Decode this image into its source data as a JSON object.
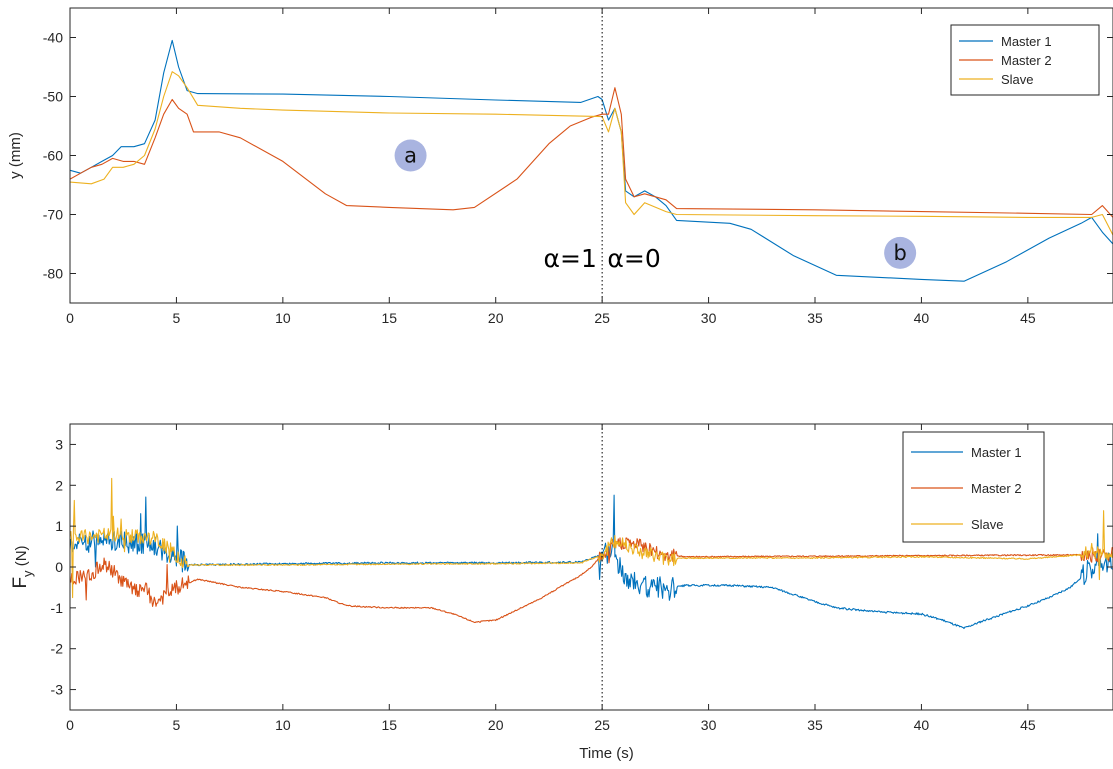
{
  "chart_data": [
    {
      "type": "line",
      "ylabel": "y (mm)",
      "xlabel": "",
      "xlim": [
        0,
        49
      ],
      "ylim": [
        -85,
        -35
      ],
      "x_ticks": [
        0,
        5,
        10,
        15,
        20,
        25,
        30,
        35,
        40,
        45
      ],
      "y_ticks": [
        -80,
        -70,
        -60,
        -50,
        -40
      ],
      "grid": false,
      "legend_position": "top-right",
      "legend": [
        "Master 1",
        "Master 2",
        "Slave"
      ],
      "series": [
        {
          "name": "Master 1",
          "color": "#0072BD",
          "points": [
            [
              0,
              -62.5
            ],
            [
              0.5,
              -63
            ],
            [
              1,
              -62
            ],
            [
              1.5,
              -61
            ],
            [
              2,
              -60
            ],
            [
              2.4,
              -58.5
            ],
            [
              3,
              -58.5
            ],
            [
              3.5,
              -58
            ],
            [
              4,
              -54
            ],
            [
              4.4,
              -46
            ],
            [
              4.8,
              -40.5
            ],
            [
              5.1,
              -45
            ],
            [
              5.5,
              -49
            ],
            [
              6,
              -49.5
            ],
            [
              10,
              -49.6
            ],
            [
              15,
              -50
            ],
            [
              20,
              -50.6
            ],
            [
              24,
              -51
            ],
            [
              24.8,
              -50
            ],
            [
              25,
              -50.5
            ],
            [
              25.3,
              -54
            ],
            [
              25.6,
              -52
            ],
            [
              25.9,
              -56
            ],
            [
              26.1,
              -66
            ],
            [
              26.5,
              -67
            ],
            [
              27,
              -66
            ],
            [
              27.5,
              -67
            ],
            [
              28,
              -68.5
            ],
            [
              28.5,
              -71
            ],
            [
              31,
              -71.5
            ],
            [
              32,
              -72.5
            ],
            [
              34,
              -77
            ],
            [
              36,
              -80.3
            ],
            [
              40,
              -81
            ],
            [
              42,
              -81.3
            ],
            [
              44,
              -78
            ],
            [
              46,
              -74
            ],
            [
              47.5,
              -71.5
            ],
            [
              48,
              -70.5
            ],
            [
              48.5,
              -73
            ],
            [
              49,
              -75
            ]
          ]
        },
        {
          "name": "Master 2",
          "color": "#D95319",
          "points": [
            [
              0,
              -64
            ],
            [
              0.5,
              -63
            ],
            [
              1,
              -62
            ],
            [
              1.5,
              -61.5
            ],
            [
              2,
              -60.5
            ],
            [
              2.5,
              -61
            ],
            [
              3,
              -61
            ],
            [
              3.5,
              -61.5
            ],
            [
              4,
              -57
            ],
            [
              4.4,
              -53
            ],
            [
              4.8,
              -50.5
            ],
            [
              5.1,
              -52
            ],
            [
              5.5,
              -53
            ],
            [
              5.8,
              -56
            ],
            [
              7,
              -56
            ],
            [
              8,
              -57
            ],
            [
              10,
              -61
            ],
            [
              12,
              -66.5
            ],
            [
              13,
              -68.5
            ],
            [
              15,
              -68.8
            ],
            [
              18,
              -69.2
            ],
            [
              19,
              -68.8
            ],
            [
              21,
              -64
            ],
            [
              22.5,
              -58
            ],
            [
              23.5,
              -55
            ],
            [
              24.5,
              -53.5
            ],
            [
              25,
              -53
            ],
            [
              25.3,
              -53
            ],
            [
              25.6,
              -48.5
            ],
            [
              25.9,
              -53
            ],
            [
              26.1,
              -64
            ],
            [
              26.5,
              -67
            ],
            [
              27,
              -66.5
            ],
            [
              28,
              -67.5
            ],
            [
              28.5,
              -69
            ],
            [
              35,
              -69.2
            ],
            [
              40,
              -69.5
            ],
            [
              45,
              -69.8
            ],
            [
              48,
              -70
            ],
            [
              48.5,
              -68.5
            ],
            [
              49,
              -70.5
            ]
          ]
        },
        {
          "name": "Slave",
          "color": "#EDB120",
          "points": [
            [
              0,
              -64.5
            ],
            [
              1,
              -64.8
            ],
            [
              1.6,
              -64
            ],
            [
              2,
              -62
            ],
            [
              2.5,
              -62
            ],
            [
              3,
              -61.5
            ],
            [
              3.5,
              -60
            ],
            [
              4,
              -55.5
            ],
            [
              4.4,
              -50
            ],
            [
              4.8,
              -45.8
            ],
            [
              5.1,
              -46.5
            ],
            [
              5.5,
              -48.5
            ],
            [
              6,
              -51.5
            ],
            [
              8,
              -52
            ],
            [
              10,
              -52.3
            ],
            [
              15,
              -52.8
            ],
            [
              20,
              -53
            ],
            [
              25,
              -53.4
            ],
            [
              25.3,
              -56
            ],
            [
              25.6,
              -52
            ],
            [
              25.9,
              -56
            ],
            [
              26.1,
              -68
            ],
            [
              26.5,
              -70
            ],
            [
              27,
              -68
            ],
            [
              28,
              -69.5
            ],
            [
              28.5,
              -70
            ],
            [
              35,
              -70.2
            ],
            [
              40,
              -70.3
            ],
            [
              45,
              -70.5
            ],
            [
              48,
              -70.5
            ],
            [
              48.5,
              -70
            ],
            [
              49,
              -73.5
            ]
          ]
        }
      ],
      "annotations": [
        {
          "text": "a",
          "x": 16,
          "y": -60
        },
        {
          "text": "b",
          "x": 39,
          "y": -76.5
        },
        {
          "text": "α=1",
          "x": 23.5,
          "y": -77.5
        },
        {
          "text": "α=0",
          "x": 26.5,
          "y": -77.5
        }
      ]
    },
    {
      "type": "line",
      "ylabel": "F_y (N)",
      "xlabel": "Time (s)",
      "xlim": [
        0,
        49
      ],
      "ylim": [
        -3.5,
        3.5
      ],
      "x_ticks": [
        0,
        5,
        10,
        15,
        20,
        25,
        30,
        35,
        40,
        45
      ],
      "y_ticks": [
        -3,
        -2,
        -1,
        0,
        1,
        2,
        3
      ],
      "grid": false,
      "legend_position": "top-right",
      "legend": [
        "Master 1",
        "Master 2",
        "Slave"
      ],
      "series": [
        {
          "name": "Master 1",
          "color": "#0072BD",
          "points": [
            [
              0,
              0.6
            ],
            [
              2,
              0.65
            ],
            [
              3,
              0.6
            ],
            [
              4,
              0.5
            ],
            [
              5,
              0.25
            ],
            [
              5.5,
              0.05
            ],
            [
              10,
              0.08
            ],
            [
              15,
              0.1
            ],
            [
              20,
              0.1
            ],
            [
              24,
              0.12
            ],
            [
              25,
              0.3
            ],
            [
              25.5,
              0.4
            ],
            [
              26,
              -0.2
            ],
            [
              27,
              -0.5
            ],
            [
              28,
              -0.5
            ],
            [
              29,
              -0.45
            ],
            [
              31,
              -0.45
            ],
            [
              33,
              -0.5
            ],
            [
              35,
              -0.85
            ],
            [
              36,
              -1.0
            ],
            [
              38,
              -1.1
            ],
            [
              40,
              -1.15
            ],
            [
              41,
              -1.3
            ],
            [
              42,
              -1.5
            ],
            [
              43,
              -1.3
            ],
            [
              45,
              -0.95
            ],
            [
              46,
              -0.75
            ],
            [
              47,
              -0.5
            ],
            [
              48,
              0
            ],
            [
              49,
              0.2
            ]
          ],
          "noise": 0.18
        },
        {
          "name": "Master 2",
          "color": "#D95319",
          "points": [
            [
              0,
              -0.3
            ],
            [
              1,
              -0.2
            ],
            [
              1.5,
              0.1
            ],
            [
              2,
              -0.1
            ],
            [
              3,
              -0.6
            ],
            [
              3.5,
              -0.5
            ],
            [
              4,
              -0.9
            ],
            [
              4.5,
              -0.7
            ],
            [
              5,
              -0.5
            ],
            [
              5.5,
              -0.4
            ],
            [
              6,
              -0.3
            ],
            [
              8,
              -0.5
            ],
            [
              10,
              -0.6
            ],
            [
              12,
              -0.75
            ],
            [
              13,
              -0.95
            ],
            [
              15,
              -1.0
            ],
            [
              17,
              -1.0
            ],
            [
              18,
              -1.15
            ],
            [
              19,
              -1.35
            ],
            [
              20,
              -1.3
            ],
            [
              21,
              -1.05
            ],
            [
              22,
              -0.8
            ],
            [
              23,
              -0.5
            ],
            [
              24,
              -0.2
            ],
            [
              24.5,
              0
            ],
            [
              25,
              0.3
            ],
            [
              25.5,
              0.5
            ],
            [
              26,
              0.6
            ],
            [
              27,
              0.5
            ],
            [
              28,
              0.3
            ],
            [
              29,
              0.25
            ],
            [
              49,
              0.3
            ]
          ],
          "noise": 0.12
        },
        {
          "name": "Slave",
          "color": "#EDB120",
          "points": [
            [
              0,
              0.7
            ],
            [
              1,
              0.75
            ],
            [
              2,
              0.8
            ],
            [
              3,
              0.75
            ],
            [
              4,
              0.7
            ],
            [
              5,
              0.3
            ],
            [
              5.5,
              0.05
            ],
            [
              10,
              0.05
            ],
            [
              15,
              0.07
            ],
            [
              20,
              0.08
            ],
            [
              24,
              0.1
            ],
            [
              25,
              0.3
            ],
            [
              25.5,
              0.6
            ],
            [
              26,
              0.6
            ],
            [
              27,
              0.35
            ],
            [
              28,
              0.2
            ],
            [
              29,
              0.22
            ],
            [
              35,
              0.22
            ],
            [
              40,
              0.25
            ],
            [
              45,
              0.2
            ],
            [
              47.5,
              0.3
            ],
            [
              48,
              0.4
            ],
            [
              49,
              0.3
            ]
          ],
          "noise": 0.12
        }
      ]
    }
  ]
}
